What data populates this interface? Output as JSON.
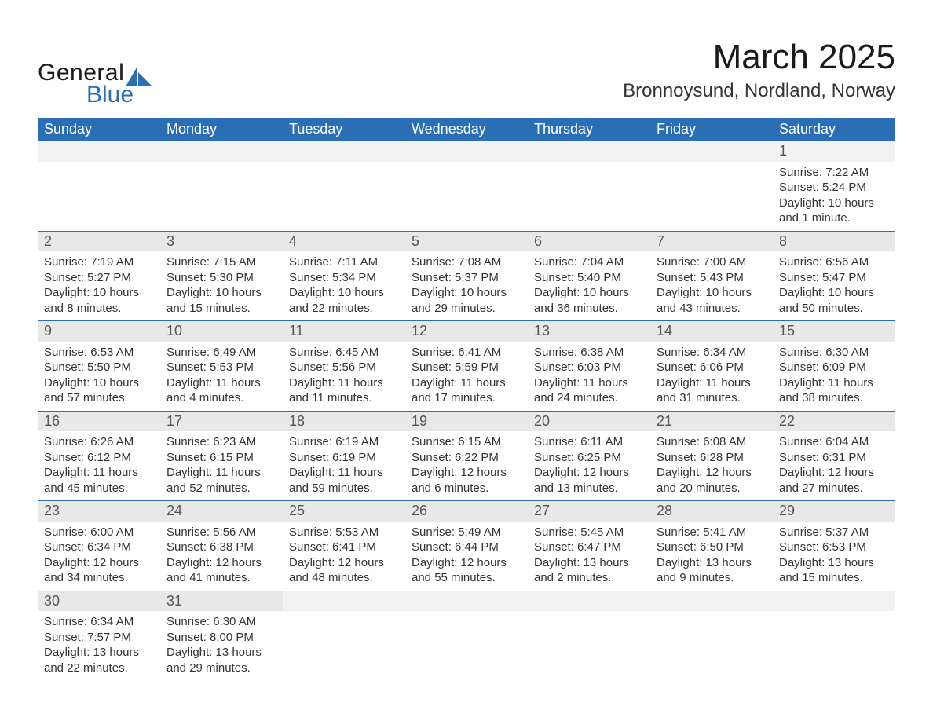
{
  "logo": {
    "word1": "General",
    "word2": "Blue"
  },
  "title": "March 2025",
  "location": "Bronnoysund, Nordland, Norway",
  "colors": {
    "header_bg": "#2a6fb5",
    "header_text": "#ffffff",
    "daynum_bg": "#e8e8e8",
    "empty_bg": "#f2f2f2",
    "text": "#333333",
    "border": "#2a6fb5"
  },
  "weekdays": [
    "Sunday",
    "Monday",
    "Tuesday",
    "Wednesday",
    "Thursday",
    "Friday",
    "Saturday"
  ],
  "weeks": [
    {
      "nums": [
        "",
        "",
        "",
        "",
        "",
        "",
        "1"
      ],
      "cells": [
        "",
        "",
        "",
        "",
        "",
        "",
        "Sunrise: 7:22 AM\nSunset: 5:24 PM\nDaylight: 10 hours and 1 minute."
      ]
    },
    {
      "nums": [
        "2",
        "3",
        "4",
        "5",
        "6",
        "7",
        "8"
      ],
      "cells": [
        "Sunrise: 7:19 AM\nSunset: 5:27 PM\nDaylight: 10 hours and 8 minutes.",
        "Sunrise: 7:15 AM\nSunset: 5:30 PM\nDaylight: 10 hours and 15 minutes.",
        "Sunrise: 7:11 AM\nSunset: 5:34 PM\nDaylight: 10 hours and 22 minutes.",
        "Sunrise: 7:08 AM\nSunset: 5:37 PM\nDaylight: 10 hours and 29 minutes.",
        "Sunrise: 7:04 AM\nSunset: 5:40 PM\nDaylight: 10 hours and 36 minutes.",
        "Sunrise: 7:00 AM\nSunset: 5:43 PM\nDaylight: 10 hours and 43 minutes.",
        "Sunrise: 6:56 AM\nSunset: 5:47 PM\nDaylight: 10 hours and 50 minutes."
      ]
    },
    {
      "nums": [
        "9",
        "10",
        "11",
        "12",
        "13",
        "14",
        "15"
      ],
      "cells": [
        "Sunrise: 6:53 AM\nSunset: 5:50 PM\nDaylight: 10 hours and 57 minutes.",
        "Sunrise: 6:49 AM\nSunset: 5:53 PM\nDaylight: 11 hours and 4 minutes.",
        "Sunrise: 6:45 AM\nSunset: 5:56 PM\nDaylight: 11 hours and 11 minutes.",
        "Sunrise: 6:41 AM\nSunset: 5:59 PM\nDaylight: 11 hours and 17 minutes.",
        "Sunrise: 6:38 AM\nSunset: 6:03 PM\nDaylight: 11 hours and 24 minutes.",
        "Sunrise: 6:34 AM\nSunset: 6:06 PM\nDaylight: 11 hours and 31 minutes.",
        "Sunrise: 6:30 AM\nSunset: 6:09 PM\nDaylight: 11 hours and 38 minutes."
      ]
    },
    {
      "nums": [
        "16",
        "17",
        "18",
        "19",
        "20",
        "21",
        "22"
      ],
      "cells": [
        "Sunrise: 6:26 AM\nSunset: 6:12 PM\nDaylight: 11 hours and 45 minutes.",
        "Sunrise: 6:23 AM\nSunset: 6:15 PM\nDaylight: 11 hours and 52 minutes.",
        "Sunrise: 6:19 AM\nSunset: 6:19 PM\nDaylight: 11 hours and 59 minutes.",
        "Sunrise: 6:15 AM\nSunset: 6:22 PM\nDaylight: 12 hours and 6 minutes.",
        "Sunrise: 6:11 AM\nSunset: 6:25 PM\nDaylight: 12 hours and 13 minutes.",
        "Sunrise: 6:08 AM\nSunset: 6:28 PM\nDaylight: 12 hours and 20 minutes.",
        "Sunrise: 6:04 AM\nSunset: 6:31 PM\nDaylight: 12 hours and 27 minutes."
      ]
    },
    {
      "nums": [
        "23",
        "24",
        "25",
        "26",
        "27",
        "28",
        "29"
      ],
      "cells": [
        "Sunrise: 6:00 AM\nSunset: 6:34 PM\nDaylight: 12 hours and 34 minutes.",
        "Sunrise: 5:56 AM\nSunset: 6:38 PM\nDaylight: 12 hours and 41 minutes.",
        "Sunrise: 5:53 AM\nSunset: 6:41 PM\nDaylight: 12 hours and 48 minutes.",
        "Sunrise: 5:49 AM\nSunset: 6:44 PM\nDaylight: 12 hours and 55 minutes.",
        "Sunrise: 5:45 AM\nSunset: 6:47 PM\nDaylight: 13 hours and 2 minutes.",
        "Sunrise: 5:41 AM\nSunset: 6:50 PM\nDaylight: 13 hours and 9 minutes.",
        "Sunrise: 5:37 AM\nSunset: 6:53 PM\nDaylight: 13 hours and 15 minutes."
      ]
    },
    {
      "nums": [
        "30",
        "31",
        "",
        "",
        "",
        "",
        ""
      ],
      "cells": [
        "Sunrise: 6:34 AM\nSunset: 7:57 PM\nDaylight: 13 hours and 22 minutes.",
        "Sunrise: 6:30 AM\nSunset: 8:00 PM\nDaylight: 13 hours and 29 minutes.",
        "",
        "",
        "",
        "",
        ""
      ]
    }
  ]
}
